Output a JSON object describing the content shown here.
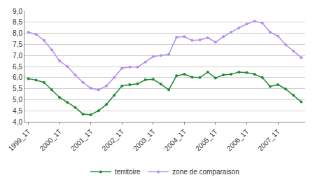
{
  "chart_data": {
    "type": "line",
    "categories": [
      "1999_1T",
      null,
      null,
      null,
      "2000_1T",
      null,
      null,
      null,
      "2001_1T",
      null,
      null,
      null,
      "2002_1T",
      null,
      null,
      null,
      "2003_1T",
      null,
      null,
      null,
      "2004_1T",
      null,
      null,
      null,
      "2005_1T",
      null,
      null,
      null,
      "2006_1T",
      null,
      null,
      null,
      "2007_1T",
      null,
      null,
      null
    ],
    "series": [
      {
        "name": "territoire",
        "color": "#1e8a32",
        "values": [
          5.95,
          5.88,
          5.78,
          5.45,
          5.1,
          4.88,
          4.65,
          4.35,
          4.32,
          4.5,
          4.78,
          5.2,
          5.62,
          5.68,
          5.72,
          5.9,
          5.92,
          5.7,
          5.45,
          6.08,
          6.15,
          6.02,
          6.0,
          6.25,
          5.98,
          6.12,
          6.15,
          6.25,
          6.22,
          6.15,
          6.0,
          5.6,
          5.68,
          5.48,
          5.2,
          4.9
        ]
      },
      {
        "name": "zone de comparaison",
        "color": "#b08ef0",
        "values": [
          8.05,
          7.95,
          7.68,
          7.25,
          6.75,
          6.5,
          6.12,
          5.78,
          5.52,
          5.45,
          5.62,
          6.0,
          6.42,
          6.48,
          6.48,
          6.7,
          6.95,
          7.0,
          7.05,
          7.82,
          7.85,
          7.68,
          7.7,
          7.8,
          7.6,
          7.85,
          8.05,
          8.25,
          8.42,
          8.55,
          8.47,
          8.05,
          7.88,
          7.48,
          7.2,
          6.9
        ]
      }
    ],
    "ylim": [
      4.0,
      9.0
    ],
    "yticks": [
      {
        "value": 4.0,
        "label": "4,0"
      },
      {
        "value": 4.5,
        "label": "4,5"
      },
      {
        "value": 5.0,
        "label": "5,0"
      },
      {
        "value": 5.5,
        "label": "5,5"
      },
      {
        "value": 6.0,
        "label": "6,0"
      },
      {
        "value": 6.5,
        "label": "6,5"
      },
      {
        "value": 7.0,
        "label": "7,0"
      },
      {
        "value": 7.5,
        "label": "7,5"
      },
      {
        "value": 8.0,
        "label": "8,0"
      },
      {
        "value": 8.5,
        "label": "8,5"
      },
      {
        "value": 9.0,
        "label": "9,0"
      }
    ],
    "grid": true,
    "legend": "bottom",
    "marker": "circle",
    "line_style": "solid"
  }
}
